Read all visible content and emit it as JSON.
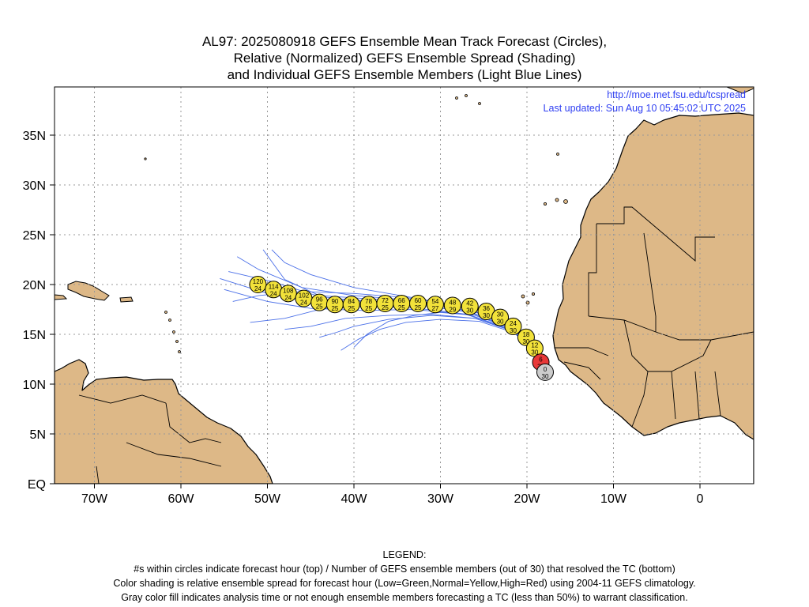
{
  "title": {
    "line1": "AL97: 2025080918 GEFS Ensemble Mean Track Forecast (Circles),",
    "line2": "Relative (Normalized) GEFS Ensemble Spread (Shading)",
    "line3": "and Individual GEFS Ensemble Members (Light Blue Lines)"
  },
  "info": {
    "url": "http://moe.met.fsu.edu/tcspread",
    "updated": "Last updated: Sun Aug 10 05:45:02 UTC 2025"
  },
  "axes": {
    "lon_ticks": [
      {
        "lon": -70,
        "label": "70W"
      },
      {
        "lon": -60,
        "label": "60W"
      },
      {
        "lon": -50,
        "label": "50W"
      },
      {
        "lon": -40,
        "label": "40W"
      },
      {
        "lon": -30,
        "label": "30W"
      },
      {
        "lon": -20,
        "label": "20W"
      },
      {
        "lon": -10,
        "label": "10W"
      },
      {
        "lon": 0,
        "label": "0"
      }
    ],
    "lat_ticks": [
      {
        "lat": 0,
        "label": "EQ"
      },
      {
        "lat": 5,
        "label": "5N"
      },
      {
        "lat": 10,
        "label": "10N"
      },
      {
        "lat": 15,
        "label": "15N"
      },
      {
        "lat": 20,
        "label": "20N"
      },
      {
        "lat": 25,
        "label": "25N"
      },
      {
        "lat": 30,
        "label": "30N"
      },
      {
        "lat": 35,
        "label": "35N"
      }
    ]
  },
  "colors": {
    "land": "#ddb887",
    "ocean": "#ffffff",
    "member_lines": "#4a6fe8",
    "normal_spread": "#f2e23a",
    "high_spread": "#e83838",
    "analysis_gray": "#cccccc"
  },
  "track": [
    {
      "hour": "0",
      "members": "30",
      "lon": -17.9,
      "lat": 11.2,
      "color": "#cccccc"
    },
    {
      "hour": "6",
      "members": "30",
      "lon": -18.4,
      "lat": 12.2,
      "color": "#e83838"
    },
    {
      "hour": "12",
      "members": "30",
      "lon": -19.1,
      "lat": 13.6,
      "color": "#f2e23a"
    },
    {
      "hour": "18",
      "members": "30",
      "lon": -20.1,
      "lat": 14.7,
      "color": "#f2e23a"
    },
    {
      "hour": "24",
      "members": "30",
      "lon": -21.6,
      "lat": 15.8,
      "color": "#f2e23a"
    },
    {
      "hour": "30",
      "members": "30",
      "lon": -23.1,
      "lat": 16.7,
      "color": "#f2e23a"
    },
    {
      "hour": "36",
      "members": "30",
      "lon": -24.7,
      "lat": 17.3,
      "color": "#f2e23a"
    },
    {
      "hour": "42",
      "members": "30",
      "lon": -26.6,
      "lat": 17.8,
      "color": "#f2e23a"
    },
    {
      "hour": "48",
      "members": "29",
      "lon": -28.6,
      "lat": 17.9,
      "color": "#f2e23a"
    },
    {
      "hour": "54",
      "members": "27",
      "lon": -30.6,
      "lat": 18.0,
      "color": "#f2e23a"
    },
    {
      "hour": "60",
      "members": "25",
      "lon": -32.6,
      "lat": 18.1,
      "color": "#f2e23a"
    },
    {
      "hour": "66",
      "members": "25",
      "lon": -34.5,
      "lat": 18.1,
      "color": "#f2e23a"
    },
    {
      "hour": "72",
      "members": "25",
      "lon": -36.4,
      "lat": 18.1,
      "color": "#f2e23a"
    },
    {
      "hour": "78",
      "members": "25",
      "lon": -38.3,
      "lat": 18.0,
      "color": "#f2e23a"
    },
    {
      "hour": "84",
      "members": "25",
      "lon": -40.3,
      "lat": 18.0,
      "color": "#f2e23a"
    },
    {
      "hour": "90",
      "members": "25",
      "lon": -42.2,
      "lat": 18.0,
      "color": "#f2e23a"
    },
    {
      "hour": "96",
      "members": "25",
      "lon": -44.0,
      "lat": 18.2,
      "color": "#f2e23a"
    },
    {
      "hour": "102",
      "members": "24",
      "lon": -45.8,
      "lat": 18.6,
      "color": "#f2e23a"
    },
    {
      "hour": "108",
      "members": "24",
      "lon": -47.6,
      "lat": 19.1,
      "color": "#f2e23a"
    },
    {
      "hour": "114",
      "members": "24",
      "lon": -49.3,
      "lat": 19.5,
      "color": "#f2e23a"
    },
    {
      "hour": "120",
      "members": "24",
      "lon": -51.1,
      "lat": 20.0,
      "color": "#f2e23a"
    }
  ],
  "members": [
    [
      [
        -17.9,
        11.2
      ],
      [
        -19.5,
        14.0
      ],
      [
        -22.5,
        16.0
      ],
      [
        -27,
        17.6
      ],
      [
        -33,
        18.4
      ],
      [
        -40,
        18.9
      ],
      [
        -46,
        19.7
      ],
      [
        -51,
        21.5
      ],
      [
        -53.5,
        22.8
      ]
    ],
    [
      [
        -17.9,
        11.2
      ],
      [
        -19.3,
        13.8
      ],
      [
        -22,
        15.7
      ],
      [
        -26.5,
        17.2
      ],
      [
        -32,
        17.9
      ],
      [
        -38,
        18.2
      ],
      [
        -44,
        18.8
      ],
      [
        -49.5,
        20.3
      ],
      [
        -54.5,
        21.3
      ]
    ],
    [
      [
        -17.9,
        11.2
      ],
      [
        -19.2,
        13.6
      ],
      [
        -22,
        15.5
      ],
      [
        -27,
        17.0
      ],
      [
        -33,
        17.5
      ],
      [
        -39,
        17.4
      ],
      [
        -45,
        17.6
      ],
      [
        -50,
        18.3
      ],
      [
        -55,
        19.5
      ]
    ],
    [
      [
        -17.9,
        11.2
      ],
      [
        -19.0,
        13.5
      ],
      [
        -21.5,
        15.3
      ],
      [
        -26,
        16.6
      ],
      [
        -31,
        16.9
      ],
      [
        -36,
        16.5
      ],
      [
        -40,
        15.8
      ],
      [
        -42,
        15.2
      ],
      [
        -44,
        14.7
      ]
    ],
    [
      [
        -17.9,
        11.2
      ],
      [
        -19.1,
        13.7
      ],
      [
        -21.8,
        15.6
      ],
      [
        -26,
        16.9
      ],
      [
        -30,
        17.2
      ],
      [
        -33,
        16.9
      ],
      [
        -36,
        16.3
      ],
      [
        -38.5,
        15.0
      ],
      [
        -40,
        13.7
      ]
    ],
    [
      [
        -17.9,
        11.2
      ],
      [
        -19.3,
        13.9
      ],
      [
        -22.3,
        15.8
      ],
      [
        -27,
        17.4
      ],
      [
        -33,
        18.3
      ],
      [
        -39,
        18.6
      ],
      [
        -44,
        18.9
      ],
      [
        -48,
        20.5
      ],
      [
        -50.5,
        23.5
      ]
    ],
    [
      [
        -17.9,
        11.2
      ],
      [
        -19.4,
        14.0
      ],
      [
        -22.5,
        16.1
      ],
      [
        -27.5,
        17.8
      ],
      [
        -34,
        18.8
      ],
      [
        -40,
        19.7
      ],
      [
        -45,
        21.0
      ],
      [
        -48,
        22.2
      ],
      [
        -49.5,
        23.5
      ]
    ],
    [
      [
        -17.9,
        11.2
      ],
      [
        -19.2,
        13.7
      ],
      [
        -22.2,
        15.6
      ],
      [
        -26.8,
        17.0
      ],
      [
        -32.5,
        17.6
      ],
      [
        -38,
        17.8
      ],
      [
        -43.5,
        17.6
      ],
      [
        -48,
        16.6
      ],
      [
        -52,
        16.2
      ]
    ],
    [
      [
        -17.9,
        11.2
      ],
      [
        -19.1,
        13.5
      ],
      [
        -21.9,
        15.4
      ],
      [
        -26,
        16.6
      ],
      [
        -31,
        17.0
      ],
      [
        -36,
        16.9
      ],
      [
        -41,
        16.6
      ],
      [
        -45,
        15.8
      ],
      [
        -48,
        15.5
      ]
    ],
    [
      [
        -17.9,
        11.2
      ],
      [
        -19.3,
        13.9
      ],
      [
        -22.4,
        15.9
      ],
      [
        -27,
        17.3
      ],
      [
        -33,
        18.0
      ],
      [
        -39,
        18.4
      ],
      [
        -45,
        18.5
      ],
      [
        -50,
        19.1
      ],
      [
        -55.5,
        20.6
      ]
    ],
    [
      [
        -17.9,
        11.2
      ],
      [
        -19.4,
        14.1
      ],
      [
        -22.8,
        16.2
      ],
      [
        -28,
        17.9
      ],
      [
        -34,
        18.7
      ],
      [
        -40,
        19.1
      ],
      [
        -46,
        19.3
      ],
      [
        -51,
        18.9
      ],
      [
        -54,
        18.3
      ]
    ],
    [
      [
        -17.9,
        11.2
      ],
      [
        -19.0,
        13.4
      ],
      [
        -21.6,
        15.2
      ],
      [
        -25.5,
        16.3
      ],
      [
        -30,
        16.5
      ],
      [
        -34,
        16.2
      ],
      [
        -37,
        15.5
      ],
      [
        -39.5,
        14.5
      ],
      [
        -41.5,
        13.4
      ]
    ]
  ],
  "legend": {
    "heading": "LEGEND:",
    "line1": "#s within circles indicate forecast hour (top) / Number of GEFS ensemble members (out of 30) that resolved the TC (bottom)",
    "line2": "Color shading is relative ensemble spread for forecast hour (Low=Green,Normal=Yellow,High=Red) using 2004-11 GEFS climatology.",
    "line3": "Gray color fill indicates analysis time or not enough ensemble members forecasting a TC (less than 50%) to warrant classification."
  }
}
